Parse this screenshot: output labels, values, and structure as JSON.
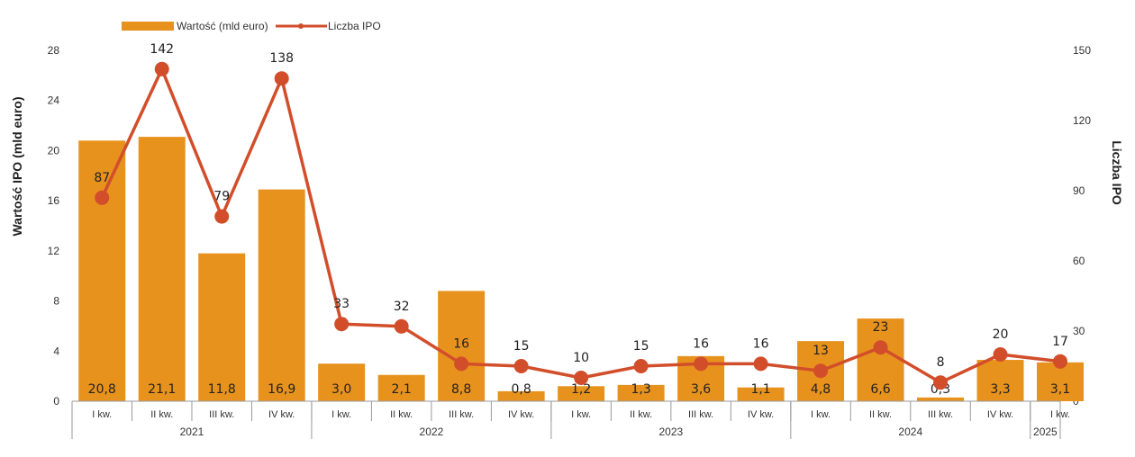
{
  "chart_data": {
    "type": "bar",
    "categories": [
      "I kw.",
      "II kw.",
      "III kw.",
      "IV kw.",
      "I kw.",
      "II kw.",
      "III kw.",
      "IV kw.",
      "I kw.",
      "II kw.",
      "III kw.",
      "IV kw.",
      "I kw.",
      "II kw.",
      "III kw.",
      "IV kw.",
      "I kw."
    ],
    "years": [
      {
        "label": "2021",
        "count": 4
      },
      {
        "label": "2022",
        "count": 4
      },
      {
        "label": "2023",
        "count": 4
      },
      {
        "label": "2024",
        "count": 4
      },
      {
        "label": "2025",
        "count": 1
      }
    ],
    "series": [
      {
        "name": "Wartość (mld euro)",
        "type": "bar",
        "axis": "left",
        "color": "#E8921E",
        "values": [
          20.8,
          21.1,
          11.8,
          16.9,
          3.0,
          2.1,
          8.8,
          0.8,
          1.2,
          1.3,
          3.6,
          1.1,
          4.8,
          6.6,
          0.3,
          3.3,
          3.1
        ],
        "labels": [
          "20,8",
          "21,1",
          "11,8",
          "16,9",
          "3,0",
          "2,1",
          "8,8",
          "0,8",
          "1,2",
          "1,3",
          "3,6",
          "1,1",
          "4,8",
          "6,6",
          "0,3",
          "3,3",
          "3,1"
        ]
      },
      {
        "name": "Liczba IPO",
        "type": "line",
        "axis": "right",
        "color": "#D24E2B",
        "values": [
          87,
          142,
          79,
          138,
          33,
          32,
          16,
          15,
          10,
          15,
          16,
          16,
          13,
          23,
          8,
          20,
          17
        ]
      }
    ],
    "ylabel": "Wartość IPO (mld euro)",
    "y2label": "Liczba IPO",
    "ylim": [
      0,
      28
    ],
    "y2lim": [
      0,
      150
    ],
    "yticks": [
      0,
      4,
      8,
      12,
      16,
      20,
      24,
      28
    ],
    "y2ticks": [
      0,
      30,
      60,
      90,
      120,
      150
    ],
    "legend_position": "top-left",
    "grid": false
  }
}
